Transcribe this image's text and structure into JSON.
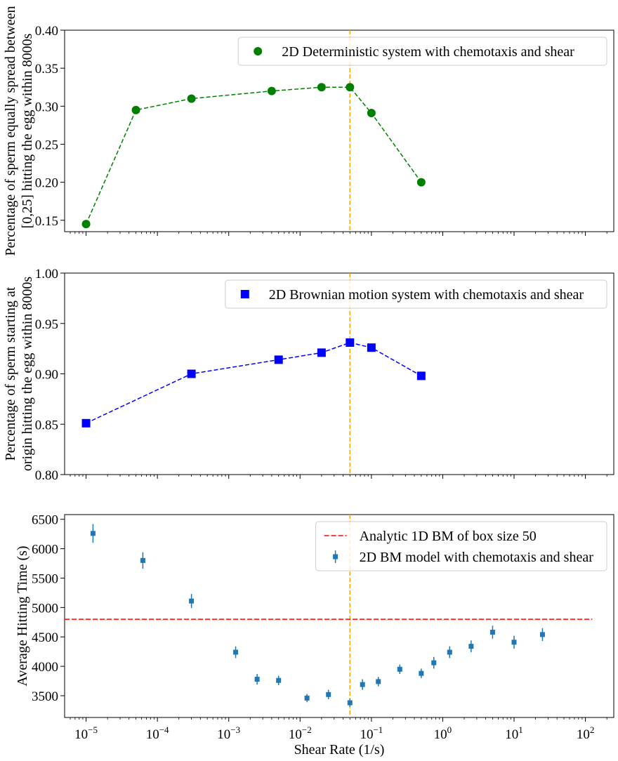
{
  "chart_data": [
    {
      "type": "line",
      "x_scale": "log",
      "xlim": [
        5e-06,
        250
      ],
      "ylim": [
        0.135,
        0.4
      ],
      "ylabel_lines": [
        "Percentage of sperm equally spread between",
        "[0,25] hitting the egg within 8000s"
      ],
      "yticks": [
        0.15,
        0.2,
        0.25,
        0.3,
        0.35,
        0.4
      ],
      "ytick_labels": [
        "0.15",
        "0.20",
        "0.25",
        "0.30",
        "0.35",
        "0.40"
      ],
      "legend_position": "top-right",
      "color": "#008000",
      "marker": "circle",
      "series": [
        {
          "name": "2D Deterministic system with chemotaxis and shear",
          "x": [
            1e-05,
            5e-05,
            0.0003,
            0.004,
            0.02,
            0.05,
            0.1,
            0.5
          ],
          "y": [
            0.145,
            0.295,
            0.31,
            0.32,
            0.325,
            0.325,
            0.291,
            0.2
          ]
        }
      ],
      "vline_x": 0.05,
      "vline_color": "#FFA500"
    },
    {
      "type": "line",
      "x_scale": "log",
      "xlim": [
        5e-06,
        250
      ],
      "ylim": [
        0.8,
        1.0
      ],
      "ylabel_lines": [
        "Percentage of sperm starting at",
        "origin hitting the egg within 8000s"
      ],
      "yticks": [
        0.8,
        0.85,
        0.9,
        0.95,
        1.0
      ],
      "ytick_labels": [
        "0.80",
        "0.85",
        "0.90",
        "0.95",
        "1.00"
      ],
      "legend_position": "top-right",
      "color": "#0000FF",
      "marker": "square",
      "series": [
        {
          "name": "2D Brownian motion system with chemotaxis and shear",
          "x": [
            1e-05,
            0.0003,
            0.005,
            0.02,
            0.05,
            0.1,
            0.5
          ],
          "y": [
            0.851,
            0.9,
            0.914,
            0.921,
            0.931,
            0.926,
            0.898
          ]
        }
      ],
      "vline_x": 0.05,
      "vline_color": "#FFA500"
    },
    {
      "type": "scatter",
      "x_scale": "log",
      "xlim": [
        5e-06,
        250
      ],
      "ylim": [
        3130,
        6580
      ],
      "xlabel": "Shear Rate (1/s)",
      "ylabel": "Average Hitting Time (s)",
      "yticks": [
        3500,
        4000,
        4500,
        5000,
        5500,
        6000,
        6500
      ],
      "ytick_labels": [
        "3500",
        "4000",
        "4500",
        "5000",
        "5500",
        "6000",
        "6500"
      ],
      "xticks_exp": [
        -5,
        -4,
        -3,
        -2,
        -1,
        0,
        1,
        2
      ],
      "legend_position": "top-right",
      "hline": {
        "name": "Analytic 1D BM of box size 50",
        "y": 4800,
        "x_end": 125,
        "color": "#FF0000"
      },
      "color": "#1F77B4",
      "series": [
        {
          "name": "2D BM model with chemotaxis and shear",
          "x": [
            1.25e-05,
            6.25e-05,
            0.0003,
            0.00125,
            0.0025,
            0.005,
            0.0125,
            0.025,
            0.05,
            0.075,
            0.125,
            0.25,
            0.5,
            0.75,
            1.25,
            2.5,
            5,
            10,
            25
          ],
          "y": [
            6260,
            5800,
            5110,
            4240,
            3780,
            3760,
            3460,
            3520,
            3380,
            3690,
            3740,
            3950,
            3880,
            4060,
            4240,
            4340,
            4580,
            4410,
            4540
          ],
          "err": [
            160,
            140,
            120,
            100,
            90,
            80,
            70,
            80,
            70,
            90,
            80,
            80,
            80,
            100,
            100,
            100,
            110,
            110,
            110
          ]
        }
      ],
      "vline_x": 0.05,
      "vline_color": "#FFA500"
    }
  ]
}
